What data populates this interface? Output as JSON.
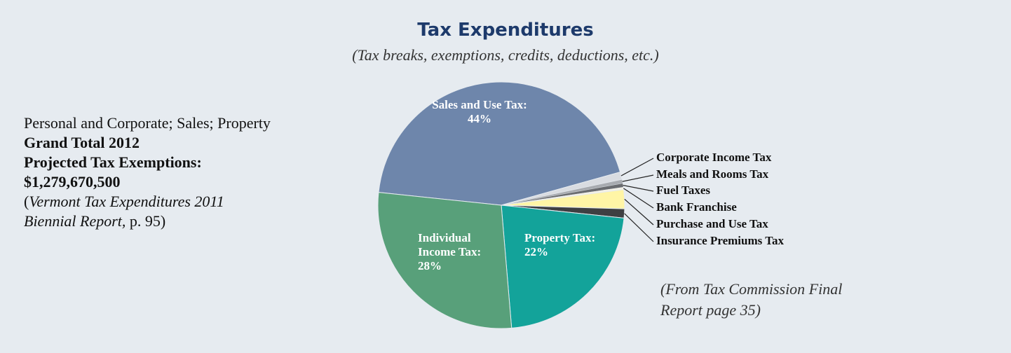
{
  "chart_data": {
    "type": "pie",
    "title": "Tax Expenditures",
    "subtitle": "(Tax breaks, exemptions, credits, deductions, etc.)",
    "categories": [
      "Sales and Use Tax:",
      "Corporate Income Tax",
      "Meals and Rooms Tax",
      "Fuel Taxes",
      "Bank Franchise",
      "Purchase and Use Tax",
      "Insurance Premiums Tax",
      "Property Tax:",
      "Individual Income Tax:"
    ],
    "values": [
      44,
      1,
      0.5,
      0.5,
      0.3,
      2.5,
      1.2,
      22,
      28
    ],
    "value_labels": [
      "44%",
      null,
      null,
      null,
      null,
      null,
      null,
      "22%",
      "28%"
    ],
    "colors": [
      "#6e86ab",
      "#d9dce1",
      "#a8abb0",
      "#6a6c70",
      "#f4f1e6",
      "#fff5a6",
      "#3e3f42",
      "#13a39a",
      "#58a07a"
    ],
    "notes": {
      "line1": "Personal and Corporate; Sales; Property",
      "line2": "Grand Total 2012",
      "line3": "Projected Tax Exemptions:",
      "line4": "$1,279,670,500",
      "cite_open": "(",
      "cite_title": "Vermont Tax Expenditures 2011 Biennial Report,",
      "cite_page": " p. 95)"
    },
    "source": "(From Tax Commission Final Report page 35)"
  }
}
